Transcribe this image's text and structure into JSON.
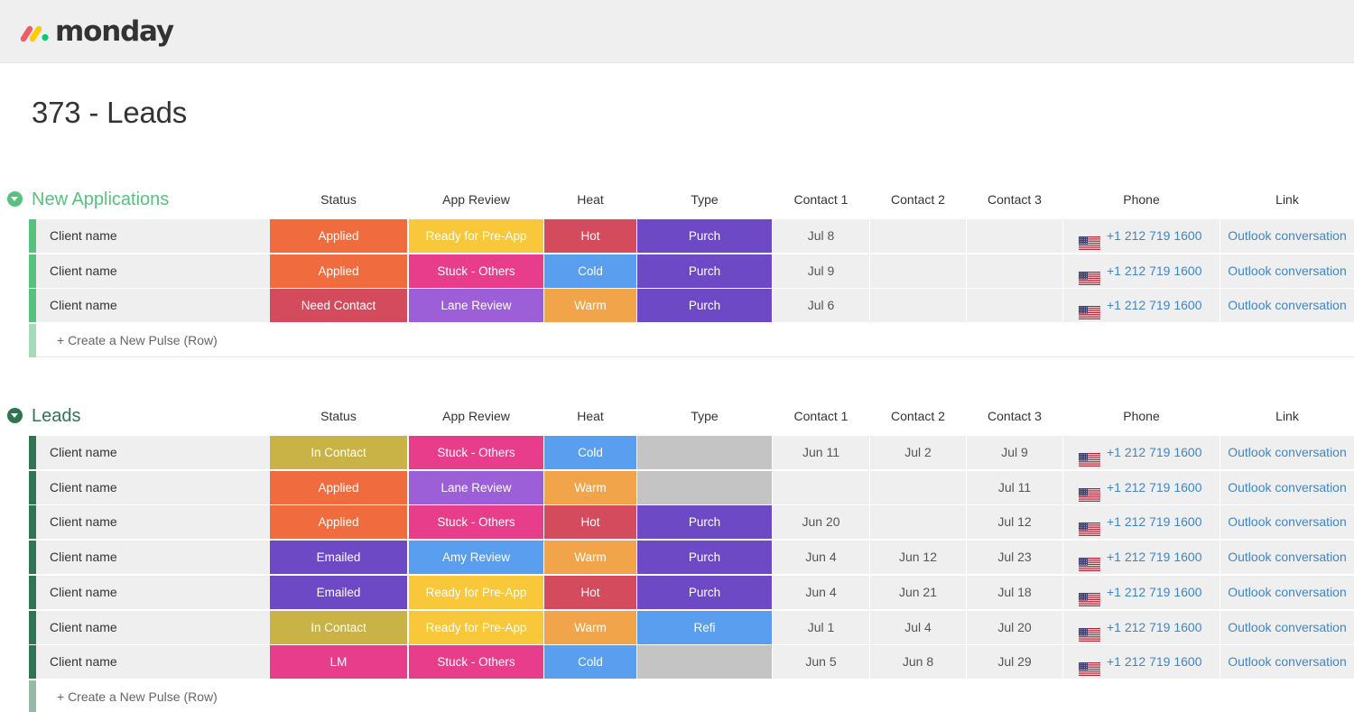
{
  "app": {
    "logo_text": "monday",
    "logo_colors": [
      "#f45b69",
      "#ffcb00",
      "#00ca72"
    ]
  },
  "board": {
    "title": "373 - Leads"
  },
  "columns": {
    "status": "Status",
    "app_review": "App Review",
    "heat": "Heat",
    "type": "Type",
    "contact1": "Contact 1",
    "contact2": "Contact 2",
    "contact3": "Contact 3",
    "phone": "Phone",
    "link": "Link"
  },
  "colors": {
    "group1": "#57c27e",
    "group1_light": "#a4dcb8",
    "group2": "#2f7552",
    "group2_light": "#97b9a7",
    "orange": "#f06b3e",
    "red": "#d44b5d",
    "yellow": "#f8c73a",
    "pink": "#e83d8b",
    "lavender": "#9d5fd8",
    "purple": "#6d49c6",
    "blue": "#5a9eef",
    "light_orange": "#f2a44b",
    "mustard": "#c9b346",
    "gray": "#c4c4c4",
    "link": "#3f86c8"
  },
  "groups": [
    {
      "name": "New Applications",
      "create_label": "+ Create a New Pulse (Row)",
      "rows": [
        {
          "name": "Client name",
          "status": "Applied",
          "app_review": "Ready for Pre-App",
          "heat": "Hot",
          "type": "Purch",
          "contact1": "Jul 8",
          "contact2": "",
          "contact3": "",
          "phone": "+1 212 719 1600",
          "link": "Outlook conversation"
        },
        {
          "name": "Client name",
          "status": "Applied",
          "app_review": "Stuck - Others",
          "heat": "Cold",
          "type": "Purch",
          "contact1": "Jul 9",
          "contact2": "",
          "contact3": "",
          "phone": "+1 212 719 1600",
          "link": "Outlook conversation"
        },
        {
          "name": "Client name",
          "status": "Need Contact",
          "app_review": "Lane Review",
          "heat": "Warm",
          "type": "Purch",
          "contact1": "Jul 6",
          "contact2": "",
          "contact3": "",
          "phone": "+1 212 719 1600",
          "link": "Outlook conversation"
        }
      ]
    },
    {
      "name": "Leads",
      "create_label": "+ Create a New Pulse (Row)",
      "rows": [
        {
          "name": "Client name",
          "status": "In Contact",
          "app_review": "Stuck - Others",
          "heat": "Cold",
          "type": "",
          "contact1": "Jun 11",
          "contact2": "Jul 2",
          "contact3": "Jul 9",
          "phone": "+1 212 719 1600",
          "link": "Outlook conversation"
        },
        {
          "name": "Client name",
          "status": "Applied",
          "app_review": "Lane Review",
          "heat": "Warm",
          "type": "",
          "contact1": "",
          "contact2": "",
          "contact3": "Jul 11",
          "phone": "+1 212 719 1600",
          "link": "Outlook conversation"
        },
        {
          "name": "Client name",
          "status": "Applied",
          "app_review": "Stuck - Others",
          "heat": "Hot",
          "type": "Purch",
          "contact1": "Jun 20",
          "contact2": "",
          "contact3": "Jul 12",
          "phone": "+1 212 719 1600",
          "link": "Outlook conversation"
        },
        {
          "name": "Client name",
          "status": "Emailed",
          "app_review": "Amy Review",
          "heat": "Warm",
          "type": "Purch",
          "contact1": "Jun 4",
          "contact2": "Jun 12",
          "contact3": "Jul 23",
          "phone": "+1 212 719 1600",
          "link": "Outlook conversation"
        },
        {
          "name": "Client name",
          "status": "Emailed",
          "app_review": "Ready for Pre-App",
          "heat": "Hot",
          "type": "Purch",
          "contact1": "Jun 4",
          "contact2": "Jun 21",
          "contact3": "Jul 18",
          "phone": "+1 212 719 1600",
          "link": "Outlook conversation"
        },
        {
          "name": "Client name",
          "status": "In Contact",
          "app_review": "Ready for Pre-App",
          "heat": "Warm",
          "type": "Refi",
          "contact1": "Jul 1",
          "contact2": "Jul 4",
          "contact3": "Jul 20",
          "phone": "+1 212 719 1600",
          "link": "Outlook conversation"
        },
        {
          "name": "Client name",
          "status": "LM",
          "app_review": "Stuck - Others",
          "heat": "Cold",
          "type": "",
          "contact1": "Jun 5",
          "contact2": "Jun 8",
          "contact3": "Jul 29",
          "phone": "+1 212 719 1600",
          "link": "Outlook conversation"
        }
      ]
    }
  ]
}
